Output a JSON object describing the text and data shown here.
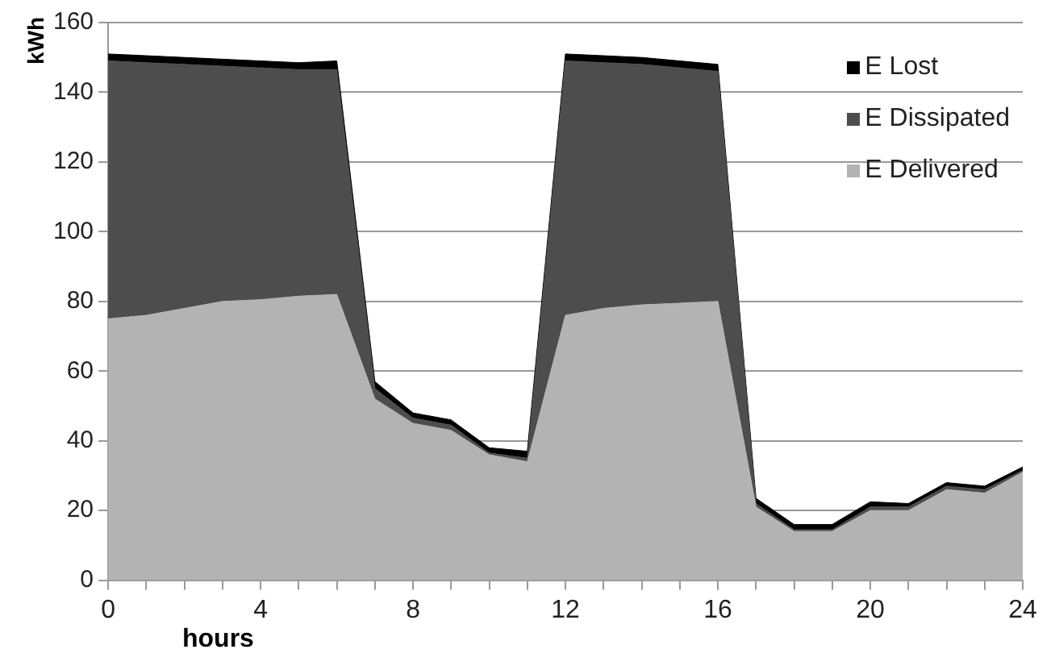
{
  "chart_data": {
    "type": "area",
    "stacked": true,
    "xlabel": "hours",
    "ylabel": "kWh",
    "x": [
      0,
      1,
      2,
      3,
      4,
      5,
      6,
      7,
      8,
      9,
      10,
      11,
      12,
      13,
      14,
      15,
      16,
      17,
      18,
      19,
      20,
      21,
      22,
      23,
      24
    ],
    "series": [
      {
        "name": "E Delivered",
        "color": "#b3b3b3",
        "values": [
          75,
          76,
          78,
          80,
          80.5,
          81.5,
          82,
          52,
          45,
          43,
          36,
          34,
          76,
          78,
          79,
          79.5,
          80,
          21,
          14,
          14,
          20,
          20,
          26,
          25,
          31
        ]
      },
      {
        "name": "E Dissipated",
        "color": "#4d4d4d",
        "values": [
          74,
          72.5,
          70,
          67.5,
          66.5,
          65,
          64.5,
          3,
          1.5,
          1.5,
          0.5,
          1,
          73,
          70.5,
          69,
          67.5,
          66,
          1,
          0.5,
          0.5,
          1,
          1,
          1,
          1,
          0.5
        ]
      },
      {
        "name": "E Lost",
        "color": "#000000",
        "values": [
          2,
          2,
          2,
          2,
          2,
          2,
          2.5,
          2,
          1.5,
          1.5,
          1.5,
          2,
          2,
          2,
          2,
          2,
          2,
          1.5,
          1.5,
          1.5,
          1.5,
          1,
          1,
          1,
          1
        ]
      }
    ],
    "xlim": [
      0,
      24
    ],
    "xticks": [
      0,
      {
        "value": 1,
        "label": null
      },
      {
        "value": 2,
        "label": null
      },
      {
        "value": 3,
        "label": null
      },
      4,
      {
        "value": 5,
        "label": null
      },
      {
        "value": 6,
        "label": null
      },
      {
        "value": 7,
        "label": null
      },
      8,
      {
        "value": 9,
        "label": null
      },
      {
        "value": 10,
        "label": null
      },
      {
        "value": 11,
        "label": null
      },
      12,
      {
        "value": 13,
        "label": null
      },
      {
        "value": 14,
        "label": null
      },
      {
        "value": 15,
        "label": null
      },
      16,
      {
        "value": 17,
        "label": null
      },
      {
        "value": 18,
        "label": null
      },
      {
        "value": 19,
        "label": null
      },
      20,
      {
        "value": 21,
        "label": null
      },
      {
        "value": 22,
        "label": null
      },
      {
        "value": 23,
        "label": null
      },
      24
    ],
    "ylim": [
      0,
      160
    ],
    "yticks": [
      0,
      20,
      40,
      60,
      80,
      100,
      120,
      140,
      160
    ],
    "grid": "y",
    "legend": "top right",
    "marker": "none"
  }
}
